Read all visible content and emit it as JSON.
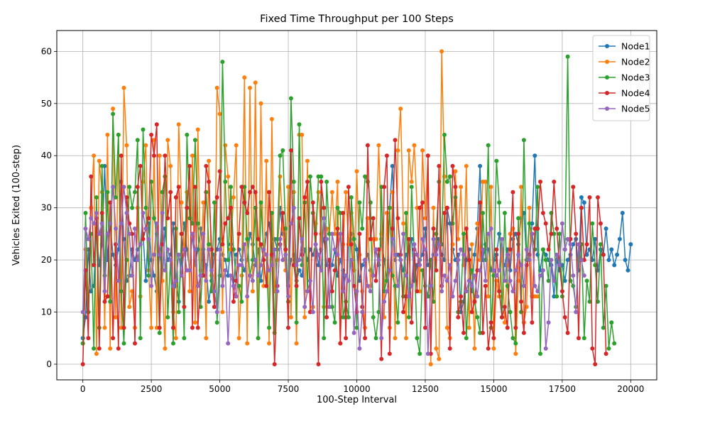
{
  "chart_data": {
    "type": "line",
    "title": "Fixed Time Throughput per 100 Steps",
    "xlabel": "100-Step Interval",
    "ylabel": "Vehicles Exited (100-step)",
    "xlim": [
      -950,
      20950
    ],
    "ylim": [
      -3,
      64
    ],
    "xticks": [
      0,
      2500,
      5000,
      7500,
      10000,
      12500,
      15000,
      17500,
      20000
    ],
    "yticks": [
      0,
      10,
      20,
      30,
      40,
      50,
      60
    ],
    "grid": true,
    "marker": "circle",
    "legend": "top-right",
    "x_start": 0,
    "x_step": 100,
    "series": [
      {
        "name": "Node1",
        "color": "#1f77b4",
        "values": [
          5,
          9,
          22,
          14,
          15,
          26,
          19,
          23,
          38,
          20,
          27,
          21,
          19,
          22,
          35,
          24,
          16,
          17,
          22,
          20,
          22,
          23,
          25,
          16,
          27,
          20,
          17,
          14,
          22,
          16,
          26,
          20,
          21,
          27,
          15,
          12,
          20,
          27,
          22,
          18,
          25,
          19,
          22,
          26,
          20,
          19,
          12,
          16,
          21,
          22,
          24,
          21,
          20,
          17,
          23,
          15,
          21,
          22,
          20,
          18,
          20,
          25,
          23,
          19,
          22,
          16,
          20,
          25,
          27,
          22,
          24,
          22,
          30,
          25,
          22,
          15,
          20,
          21,
          16,
          18,
          17,
          22,
          20,
          22,
          21,
          23,
          19,
          22,
          24,
          19,
          20,
          19,
          22,
          17,
          20,
          18,
          9,
          23,
          25,
          24,
          22,
          16,
          19,
          20,
          21,
          18,
          17,
          22,
          19,
          24,
          20,
          16,
          30,
          38,
          20,
          21,
          20,
          18,
          21,
          22,
          24,
          16,
          19,
          20,
          21,
          26,
          19,
          20,
          21,
          22,
          24,
          21,
          20,
          30,
          27,
          22,
          20,
          21,
          10,
          12,
          20,
          22,
          14,
          21,
          26,
          38,
          20,
          23,
          22,
          18,
          20,
          21,
          25,
          20,
          19,
          22,
          18,
          24,
          25,
          23,
          28,
          29,
          20,
          21,
          27,
          40,
          21,
          18,
          22,
          21,
          20,
          19,
          13,
          20,
          18,
          19,
          16,
          20,
          21,
          23,
          24,
          18,
          32,
          31,
          21,
          22,
          20,
          24,
          18,
          22,
          21,
          26,
          20,
          22,
          19,
          21,
          24,
          29,
          20,
          18,
          23
        ]
      },
      {
        "name": "Node2",
        "color": "#ff7f0e",
        "values": [
          4,
          22,
          10,
          30,
          40,
          2,
          39,
          33,
          7,
          44,
          3,
          49,
          9,
          44,
          7,
          53,
          42,
          11,
          14,
          7,
          30,
          13,
          35,
          42,
          18,
          7,
          43,
          7,
          40,
          16,
          3,
          43,
          38,
          10,
          5,
          46,
          31,
          21,
          33,
          14,
          40,
          8,
          45,
          18,
          31,
          5,
          39,
          17,
          11,
          53,
          48,
          10,
          42,
          36,
          22,
          32,
          42,
          5,
          17,
          55,
          4,
          53,
          14,
          54,
          5,
          50,
          15,
          39,
          4,
          47,
          14,
          20,
          36,
          26,
          18,
          34,
          9,
          33,
          4,
          44,
          44,
          9,
          39,
          10,
          11,
          27,
          33,
          25,
          11,
          26,
          25,
          33,
          25,
          35,
          4,
          23,
          33,
          23,
          29,
          18,
          37,
          21,
          14,
          7,
          28,
          15,
          24,
          24,
          42,
          25,
          9,
          29,
          7,
          33,
          5,
          41,
          49,
          27,
          5,
          41,
          35,
          42,
          30,
          14,
          41,
          28,
          40,
          0,
          30,
          3,
          1,
          60,
          36,
          7,
          5,
          23,
          37,
          24,
          34,
          19,
          38,
          7,
          23,
          3,
          27,
          20,
          35,
          35,
          13,
          34,
          3,
          16,
          13,
          22,
          8,
          19,
          25,
          26,
          2,
          16,
          34,
          8,
          11,
          30,
          13,
          13,
          13
        ]
      },
      {
        "name": "Node3",
        "color": "#2ca02c",
        "values": [
          4,
          29,
          10,
          25,
          3,
          32,
          7,
          38,
          17,
          33,
          12,
          48,
          32,
          44,
          14,
          4,
          20,
          34,
          30,
          33,
          43,
          5,
          45,
          30,
          17,
          35,
          28,
          25,
          6,
          33,
          36,
          9,
          20,
          4,
          26,
          10,
          25,
          5,
          44,
          28,
          27,
          43,
          27,
          11,
          22,
          33,
          23,
          14,
          31,
          8,
          17,
          58,
          35,
          20,
          34,
          22,
          16,
          15,
          12,
          34,
          24,
          17,
          20,
          30,
          5,
          31,
          22,
          21,
          7,
          29,
          6,
          24,
          40,
          41,
          26,
          12,
          51,
          35,
          8,
          46,
          19,
          31,
          14,
          36,
          29,
          22,
          36,
          36,
          5,
          35,
          25,
          11,
          8,
          30,
          29,
          9,
          12,
          9,
          32,
          24,
          7,
          31,
          26,
          36,
          35,
          31,
          9,
          5,
          10,
          34,
          14,
          16,
          30,
          17,
          15,
          8,
          21,
          13,
          29,
          9,
          34,
          21,
          5,
          2,
          18,
          15,
          13,
          20,
          12,
          25,
          35,
          23,
          44,
          35,
          36,
          27,
          32,
          10,
          12,
          25,
          5,
          16,
          18,
          12,
          9,
          6,
          29,
          20,
          42,
          7,
          17,
          39,
          31,
          9,
          29,
          15,
          10,
          5,
          4,
          28,
          10,
          43,
          20,
          27,
          25,
          22,
          34,
          2,
          22,
          20,
          16,
          29,
          25,
          13,
          25,
          13,
          22,
          59,
          16,
          15,
          11,
          20,
          23,
          5,
          16,
          12,
          27,
          19,
          12,
          23,
          7,
          15,
          3,
          8,
          4
        ]
      },
      {
        "name": "Node4",
        "color": "#d62728",
        "values": [
          0,
          18,
          5,
          36,
          19,
          28,
          3,
          29,
          12,
          13,
          31,
          5,
          23,
          3,
          40,
          7,
          32,
          27,
          25,
          4,
          34,
          38,
          24,
          26,
          28,
          44,
          40,
          46,
          7,
          23,
          40,
          28,
          33,
          7,
          32,
          34,
          25,
          11,
          30,
          38,
          7,
          34,
          7,
          17,
          17,
          38,
          35,
          22,
          11,
          32,
          37,
          23,
          27,
          28,
          30,
          12,
          16,
          25,
          34,
          31,
          29,
          33,
          34,
          33,
          24,
          23,
          20,
          15,
          33,
          21,
          0,
          15,
          23,
          29,
          22,
          7,
          41,
          19,
          15,
          28,
          21,
          32,
          35,
          10,
          31,
          25,
          0,
          35,
          30,
          9,
          20,
          14,
          18,
          26,
          4,
          29,
          5,
          34,
          23,
          15,
          10,
          25,
          11,
          5,
          42,
          24,
          28,
          16,
          22,
          1,
          34,
          40,
          2,
          26,
          43,
          28,
          21,
          10,
          13,
          24,
          8,
          22,
          14,
          30,
          31,
          7,
          40,
          2,
          26,
          18,
          38,
          15,
          29,
          30,
          3,
          38,
          34,
          9,
          13,
          6,
          26,
          20,
          10,
          12,
          18,
          31,
          6,
          15,
          3,
          8,
          5,
          22,
          14,
          9,
          11,
          7,
          22,
          33,
          7,
          25,
          12,
          6,
          19,
          21,
          8,
          26,
          26,
          35,
          29,
          27,
          22,
          25,
          35,
          26,
          19,
          14,
          9,
          6,
          24,
          34,
          25,
          5,
          30,
          20,
          23,
          32,
          3,
          0,
          32,
          27,
          21,
          2
        ]
      },
      {
        "name": "Node5",
        "color": "#9467bd",
        "values": [
          10,
          26,
          24,
          28,
          27,
          29,
          25,
          27,
          14,
          25,
          27,
          34,
          26,
          16,
          27,
          34,
          29,
          25,
          17,
          26,
          20,
          23,
          29,
          26,
          24,
          15,
          21,
          27,
          21,
          29,
          18,
          22,
          20,
          15,
          16,
          21,
          17,
          22,
          18,
          18,
          25,
          22,
          15,
          17,
          25,
          16,
          22,
          18,
          14,
          10,
          22,
          15,
          18,
          4,
          17,
          15,
          13,
          19,
          19,
          23,
          13,
          17,
          16,
          20,
          17,
          19,
          22,
          21,
          18,
          19,
          22,
          14,
          24,
          20,
          21,
          13,
          27,
          30,
          19,
          20,
          24,
          11,
          14,
          16,
          10,
          23,
          21,
          18,
          28,
          24,
          11,
          25,
          22,
          21,
          25,
          14,
          17,
          16,
          20,
          6,
          14,
          3,
          10,
          20,
          15,
          14,
          17,
          22,
          20,
          5,
          12,
          14,
          18,
          24,
          21,
          15,
          20,
          25,
          17,
          13,
          15,
          23,
          21,
          19,
          24,
          22,
          2,
          15,
          24,
          21,
          23,
          14,
          17,
          16,
          19,
          13,
          16,
          20,
          22,
          21,
          14,
          16,
          15,
          17,
          13,
          18,
          22,
          16,
          25,
          26,
          18,
          17,
          18,
          24,
          16,
          21,
          16,
          14,
          18,
          21,
          19,
          15,
          22,
          20,
          25,
          15,
          14,
          17,
          18,
          3,
          8,
          20,
          16,
          21,
          19,
          27,
          22,
          24,
          23,
          17,
          10,
          23,
          20,
          17
        ]
      }
    ]
  }
}
